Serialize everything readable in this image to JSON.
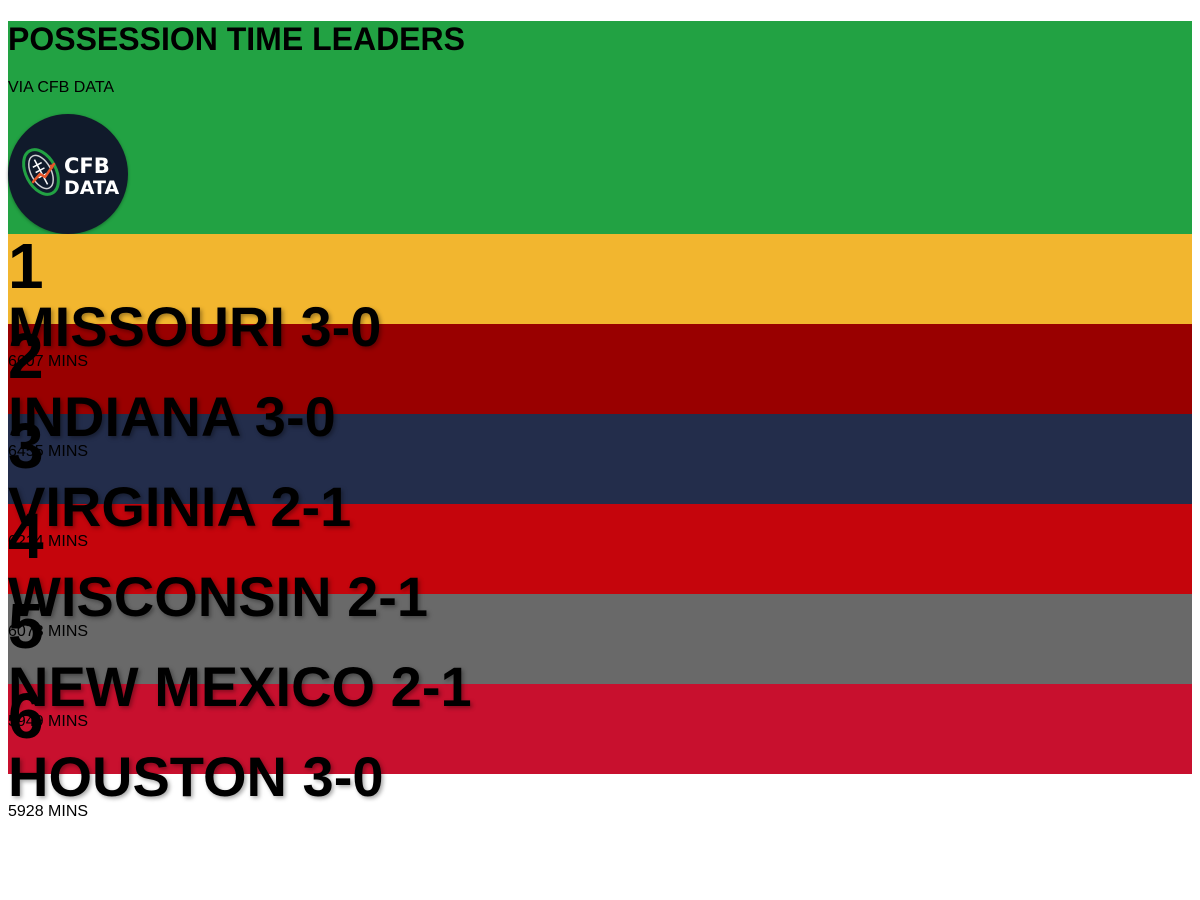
{
  "header": {
    "title": "POSSESSION TIME LEADERS",
    "source": "VIA CFB DATA",
    "bg_color": "#22a243",
    "logo": {
      "line1": "CFB",
      "line2": "DATA",
      "icon": "football-chart-icon",
      "bg_color": "#101a2b"
    }
  },
  "leaders": [
    {
      "rank": "1",
      "team": "MISSOURI 3-0",
      "mins": "6607 MINS",
      "color": "#f2b62f"
    },
    {
      "rank": "2",
      "team": "INDIANA 3-0",
      "mins": "6455 MINS",
      "color": "#990000"
    },
    {
      "rank": "3",
      "team": "VIRGINIA 2-1",
      "mins": "6214 MINS",
      "color": "#232d4b"
    },
    {
      "rank": "4",
      "team": "WISCONSIN 2-1",
      "mins": "6073 MINS",
      "color": "#c5050c"
    },
    {
      "rank": "5",
      "team": "NEW MEXICO 2-1",
      "mins": "5949 MINS",
      "color": "#696969"
    },
    {
      "rank": "6",
      "team": "HOUSTON 3-0",
      "mins": "5928 MINS",
      "color": "#c8102e"
    }
  ]
}
